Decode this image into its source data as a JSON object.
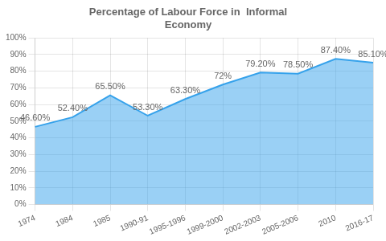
{
  "chart_data": {
    "type": "area",
    "title": "Percentage of Labour Force in  Informal\nEconomy",
    "categories": [
      "1974",
      "1984",
      "1985",
      "1990-91",
      "1995-1996",
      "1999-2000",
      "2002-2003",
      "2005-2006",
      "2010",
      "2016-17"
    ],
    "values": [
      46.6,
      52.4,
      65.5,
      53.3,
      63.3,
      72.0,
      79.2,
      78.5,
      87.4,
      85.1
    ],
    "value_labels": [
      "46.60%",
      "52.40%",
      "65.50%",
      "53.30%",
      "63.30%",
      "72%",
      "79.20%",
      "78.50%",
      "87.40%",
      "85.10%"
    ],
    "data_labels": true,
    "ylim": [
      0,
      100
    ],
    "yticks": [
      {
        "value": 0,
        "label": "0%"
      },
      {
        "value": 10,
        "label": "10%"
      },
      {
        "value": 20,
        "label": "20%"
      },
      {
        "value": 30,
        "label": "30%"
      },
      {
        "value": 40,
        "label": "40%"
      },
      {
        "value": 50,
        "label": "50%"
      },
      {
        "value": 60,
        "label": "60%"
      },
      {
        "value": 70,
        "label": "70%"
      },
      {
        "value": 80,
        "label": "80%"
      },
      {
        "value": 90,
        "label": "90%"
      },
      {
        "value": 100,
        "label": "100%"
      }
    ],
    "grid": true
  }
}
